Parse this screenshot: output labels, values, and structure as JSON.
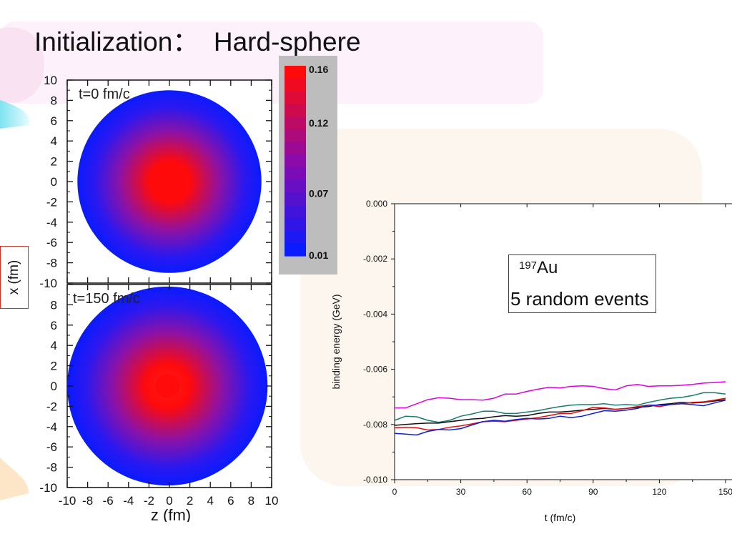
{
  "slide": {
    "title": "Initialization：  Hard-sphere"
  },
  "chart_data": [
    {
      "type": "heatmap",
      "panels": [
        {
          "label": "t=0 fm/c",
          "center_z": 0.0,
          "center_x": 0.0,
          "radius": 9.0,
          "peak": 0.16
        },
        {
          "label": "t=150 fm/c",
          "center_z": -0.2,
          "center_x": 0.0,
          "radius": 9.8,
          "peak": 0.14
        }
      ],
      "xlabel": "z (fm)",
      "ylabel": "x (fm)",
      "xlim": [
        -10,
        10
      ],
      "ylim": [
        -10,
        10
      ],
      "xticks": [
        -10,
        -8,
        -6,
        -4,
        -2,
        0,
        2,
        4,
        6,
        8,
        10
      ],
      "yticks": [
        -10,
        -8,
        -6,
        -4,
        -2,
        0,
        2,
        4,
        6,
        8,
        10
      ],
      "colorbar": {
        "min": 0.01,
        "max": 0.16,
        "ticks": [
          "0.16",
          "0.12",
          "0.07",
          "0.01"
        ],
        "low_color": "#0a1bff",
        "high_color": "#ff0a0a"
      }
    },
    {
      "type": "line",
      "xlabel": "t (fm/c)",
      "ylabel": "binding energy (GeV)",
      "xlim": [
        0,
        150
      ],
      "ylim": [
        -0.01,
        0.0
      ],
      "xticks": [
        "0",
        "30",
        "60",
        "90",
        "120",
        "150"
      ],
      "yticks": [
        "0.000",
        "-0.002",
        "-0.004",
        "-0.006",
        "-0.008",
        "-0.010"
      ],
      "legend": {
        "nucleus_mass": "197",
        "nucleus_symbol": "Au",
        "text": "5 random events",
        "placement": "top-right"
      },
      "series": [
        {
          "color": "#e000e0",
          "x": [
            0,
            5,
            10,
            15,
            20,
            25,
            30,
            35,
            40,
            45,
            50,
            55,
            60,
            65,
            70,
            75,
            80,
            85,
            90,
            95,
            100,
            105,
            110,
            115,
            120,
            125,
            130,
            135,
            140,
            145,
            150
          ],
          "values": [
            -0.0074,
            -0.0074,
            -0.00725,
            -0.0071,
            -0.00703,
            -0.00705,
            -0.0071,
            -0.0071,
            -0.00712,
            -0.00705,
            -0.0069,
            -0.0069,
            -0.0068,
            -0.00672,
            -0.00665,
            -0.00668,
            -0.00662,
            -0.0066,
            -0.00662,
            -0.0067,
            -0.00675,
            -0.0066,
            -0.00655,
            -0.00662,
            -0.0066,
            -0.0066,
            -0.00658,
            -0.00655,
            -0.0065,
            -0.00648,
            -0.00645
          ]
        },
        {
          "color": "#1a7a6e",
          "x": [
            0,
            5,
            10,
            15,
            20,
            25,
            30,
            35,
            40,
            45,
            50,
            55,
            60,
            65,
            70,
            75,
            80,
            85,
            90,
            95,
            100,
            105,
            110,
            115,
            120,
            125,
            130,
            135,
            140,
            145,
            150
          ],
          "values": [
            -0.00785,
            -0.0077,
            -0.00772,
            -0.00785,
            -0.00792,
            -0.00785,
            -0.0077,
            -0.00762,
            -0.00752,
            -0.00752,
            -0.0076,
            -0.0076,
            -0.00755,
            -0.0075,
            -0.00742,
            -0.00735,
            -0.0073,
            -0.00728,
            -0.00728,
            -0.00725,
            -0.0073,
            -0.00728,
            -0.0073,
            -0.0072,
            -0.00712,
            -0.00705,
            -0.00702,
            -0.00695,
            -0.00685,
            -0.00685,
            -0.0069
          ]
        },
        {
          "color": "#111111",
          "x": [
            0,
            5,
            10,
            15,
            20,
            25,
            30,
            35,
            40,
            45,
            50,
            55,
            60,
            65,
            70,
            75,
            80,
            85,
            90,
            95,
            100,
            105,
            110,
            115,
            120,
            125,
            130,
            135,
            140,
            145,
            150
          ],
          "values": [
            -0.00803,
            -0.008,
            -0.00797,
            -0.00795,
            -0.00795,
            -0.0079,
            -0.00785,
            -0.0078,
            -0.00778,
            -0.00772,
            -0.00768,
            -0.0077,
            -0.00768,
            -0.0076,
            -0.00755,
            -0.00755,
            -0.00752,
            -0.00748,
            -0.00745,
            -0.00742,
            -0.00745,
            -0.00742,
            -0.00738,
            -0.00735,
            -0.00728,
            -0.00725,
            -0.0072,
            -0.00722,
            -0.0072,
            -0.00715,
            -0.0071
          ]
        },
        {
          "color": "#e01010",
          "x": [
            0,
            5,
            10,
            15,
            20,
            25,
            30,
            35,
            40,
            45,
            50,
            55,
            60,
            65,
            70,
            75,
            80,
            85,
            90,
            95,
            100,
            105,
            110,
            115,
            120,
            125,
            130,
            135,
            140,
            145,
            150
          ],
          "values": [
            -0.00812,
            -0.0081,
            -0.00812,
            -0.0082,
            -0.00818,
            -0.0081,
            -0.00805,
            -0.00798,
            -0.0079,
            -0.00788,
            -0.0079,
            -0.00785,
            -0.0078,
            -0.00775,
            -0.00768,
            -0.0076,
            -0.0076,
            -0.0075,
            -0.00738,
            -0.0074,
            -0.00745,
            -0.00742,
            -0.00735,
            -0.0073,
            -0.00735,
            -0.00728,
            -0.00725,
            -0.0072,
            -0.00718,
            -0.00712,
            -0.00705
          ]
        },
        {
          "color": "#1020d0",
          "x": [
            0,
            5,
            10,
            15,
            20,
            25,
            30,
            35,
            40,
            45,
            50,
            55,
            60,
            65,
            70,
            75,
            80,
            85,
            90,
            95,
            100,
            105,
            110,
            115,
            120,
            125,
            130,
            135,
            140,
            145,
            150
          ],
          "values": [
            -0.00832,
            -0.00835,
            -0.00838,
            -0.00825,
            -0.00818,
            -0.0082,
            -0.00815,
            -0.00802,
            -0.0079,
            -0.00785,
            -0.00788,
            -0.00782,
            -0.00778,
            -0.0078,
            -0.00778,
            -0.0077,
            -0.00775,
            -0.0077,
            -0.0076,
            -0.0075,
            -0.00752,
            -0.00748,
            -0.00742,
            -0.0073,
            -0.0073,
            -0.00728,
            -0.00725,
            -0.00728,
            -0.00732,
            -0.00722,
            -0.00712
          ]
        }
      ]
    }
  ]
}
